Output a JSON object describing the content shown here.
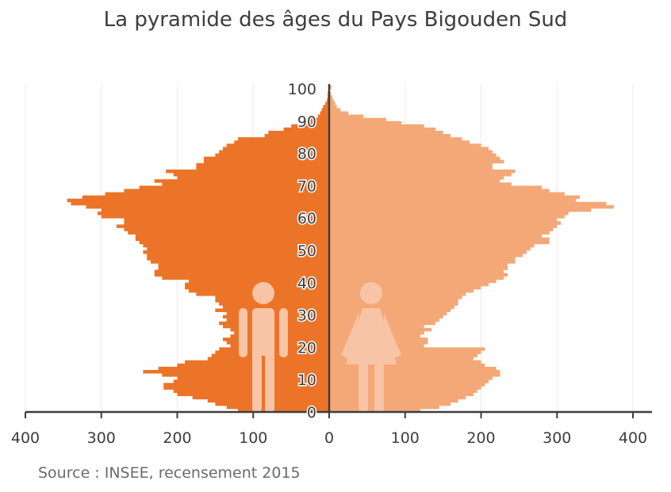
{
  "chart_data": {
    "type": "bar",
    "orientation": "horizontal",
    "subtype": "population-pyramid",
    "title": "La pyramide des âges du Pays Bigouden Sud",
    "source": "Source : INSEE, recensement 2015",
    "xlim": [
      -400,
      400
    ],
    "ylim": [
      0,
      100
    ],
    "x_ticks": [
      -400,
      -300,
      -200,
      -100,
      0,
      100,
      200,
      300,
      400
    ],
    "x_tick_labels": [
      "400",
      "300",
      "200",
      "100",
      "0",
      "100",
      "200",
      "300",
      "400"
    ],
    "age_ticks": [
      0,
      10,
      20,
      30,
      40,
      50,
      60,
      70,
      80,
      90,
      100
    ],
    "ages": [
      0,
      1,
      2,
      3,
      4,
      5,
      6,
      7,
      8,
      9,
      10,
      11,
      12,
      13,
      14,
      15,
      16,
      17,
      18,
      19,
      20,
      21,
      22,
      23,
      24,
      25,
      26,
      27,
      28,
      29,
      30,
      31,
      32,
      33,
      34,
      35,
      36,
      37,
      38,
      39,
      40,
      41,
      42,
      43,
      44,
      45,
      46,
      47,
      48,
      49,
      50,
      51,
      52,
      53,
      54,
      55,
      56,
      57,
      58,
      59,
      60,
      61,
      62,
      63,
      64,
      65,
      66,
      67,
      68,
      69,
      70,
      71,
      72,
      73,
      74,
      75,
      76,
      77,
      78,
      79,
      80,
      81,
      82,
      83,
      84,
      85,
      86,
      87,
      88,
      89,
      90,
      91,
      92,
      93,
      94,
      95,
      96,
      97,
      98,
      99,
      100
    ],
    "grid": true,
    "series": [
      {
        "side": "left",
        "color": "#ec7428",
        "values": [
          120,
          135,
          150,
          160,
          180,
          200,
          205,
          218,
          218,
          205,
          200,
          220,
          245,
          225,
          200,
          190,
          160,
          155,
          150,
          145,
          130,
          135,
          140,
          130,
          125,
          130,
          140,
          145,
          135,
          140,
          135,
          150,
          140,
          145,
          150,
          150,
          175,
          185,
          190,
          190,
          185,
          220,
          230,
          230,
          225,
          225,
          235,
          240,
          240,
          245,
          240,
          245,
          250,
          255,
          255,
          265,
          270,
          280,
          270,
          270,
          300,
          305,
          300,
          320,
          340,
          345,
          325,
          295,
          270,
          250,
          220,
          230,
          200,
          205,
          215,
          175,
          175,
          165,
          165,
          150,
          145,
          140,
          135,
          125,
          120,
          85,
          80,
          60,
          50,
          35,
          25,
          15,
          12,
          10,
          8,
          5,
          3,
          2,
          2,
          1,
          1
        ]
      },
      {
        "side": "right",
        "color": "#f4a878",
        "values": [
          120,
          145,
          160,
          170,
          180,
          190,
          195,
          200,
          205,
          210,
          215,
          225,
          225,
          220,
          205,
          200,
          190,
          195,
          200,
          205,
          125,
          130,
          130,
          120,
          125,
          135,
          125,
          140,
          145,
          150,
          155,
          160,
          165,
          170,
          170,
          175,
          180,
          190,
          200,
          210,
          220,
          230,
          235,
          230,
          235,
          235,
          245,
          245,
          255,
          260,
          265,
          270,
          290,
          290,
          280,
          290,
          295,
          300,
          305,
          300,
          310,
          315,
          345,
          375,
          365,
          325,
          330,
          310,
          290,
          280,
          240,
          225,
          230,
          240,
          245,
          215,
          215,
          230,
          225,
          220,
          215,
          210,
          200,
          185,
          175,
          160,
          150,
          140,
          125,
          95,
          75,
          45,
          25,
          15,
          10,
          8,
          6,
          4,
          2,
          1,
          3
        ]
      }
    ]
  }
}
